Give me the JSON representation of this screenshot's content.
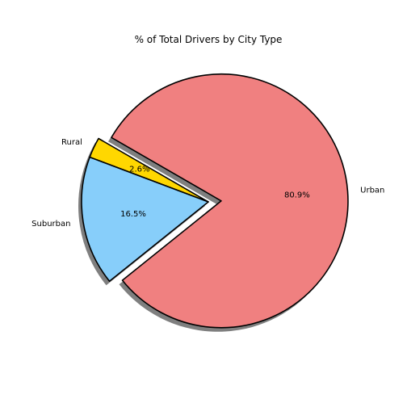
{
  "chart_data": {
    "type": "pie",
    "title": "% of Total Drivers by City Type",
    "slices": [
      {
        "label": "Rural",
        "value": 2.6,
        "display": "2.6%",
        "color": "#ffd700",
        "explode": false
      },
      {
        "label": "Suburban",
        "value": 16.5,
        "display": "16.5%",
        "color": "#87cefa",
        "explode": false
      },
      {
        "label": "Urban",
        "value": 80.9,
        "display": "80.9%",
        "color": "#f08080",
        "explode": true
      }
    ],
    "shadow": true,
    "edge_color": "#000000"
  }
}
